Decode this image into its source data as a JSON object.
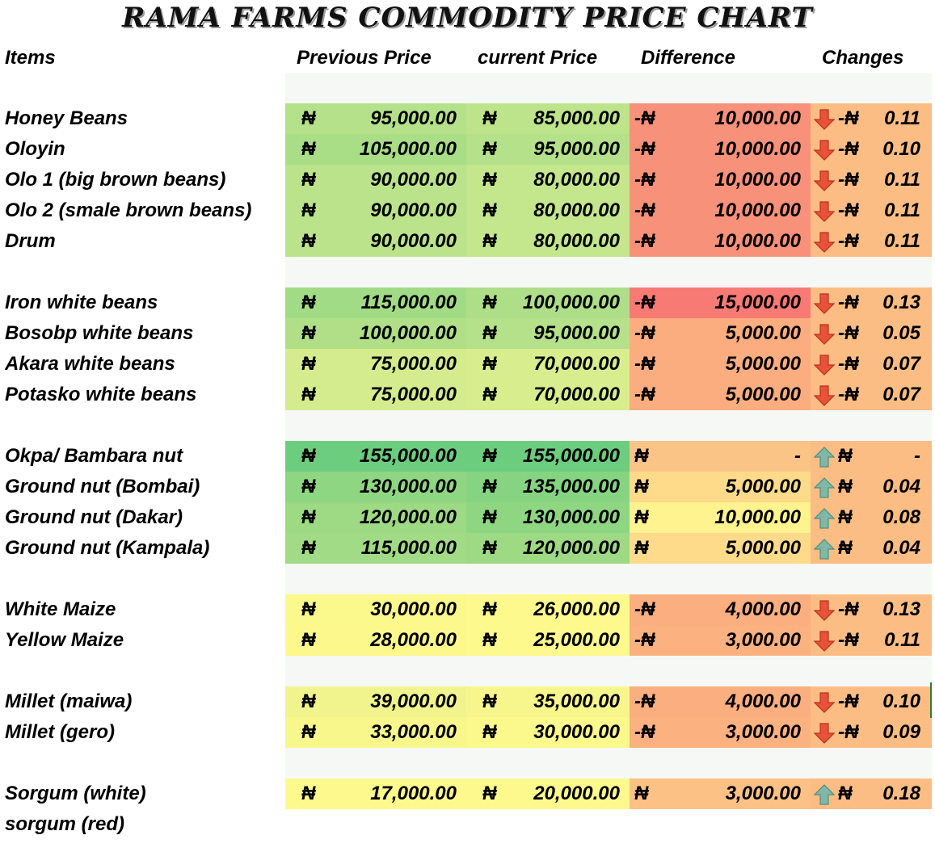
{
  "title": "RAMA FARMS COMMODITY PRICE CHART",
  "headers": {
    "items": "Items",
    "previous": "Previous Price",
    "current": "current Price",
    "difference": "Difference",
    "changes": "Changes"
  },
  "currency_symbol": "₦",
  "icons": {
    "down": "arrow-down-icon",
    "up": "arrow-up-icon"
  },
  "arrow_colors": {
    "down": "#e8513a",
    "up": "#7fb8a8"
  },
  "rows": [
    {
      "item": " Honey Beans",
      "prev": "95,000.00",
      "curr": "85,000.00",
      "diff_cur": "-₦",
      "diff": "10,000.00",
      "chg_cur": "-₦",
      "chg": "0.11",
      "dir": "down",
      "prev_bg": "#b4e189",
      "curr_bg": "#bde48b",
      "diff_bg": "#f8917a",
      "chg_bg": "#fcbd84"
    },
    {
      "item": "Oloyin",
      "prev": "105,000.00",
      "curr": "95,000.00",
      "diff_cur": "-₦",
      "diff": "10,000.00",
      "chg_cur": "-₦",
      "chg": "0.10",
      "dir": "down",
      "prev_bg": "#a9dd86",
      "curr_bg": "#b4e189",
      "diff_bg": "#f8917a",
      "chg_bg": "#fcbd84"
    },
    {
      "item": "Olo 1 (big brown beans)",
      "prev": "90,000.00",
      "curr": "80,000.00",
      "diff_cur": "-₦",
      "diff": "10,000.00",
      "chg_cur": "-₦",
      "chg": "0.11",
      "dir": "down",
      "prev_bg": "#bbe38b",
      "curr_bg": "#c4e68c",
      "diff_bg": "#f8917a",
      "chg_bg": "#fcbd84"
    },
    {
      "item": "Olo 2 (smale brown beans)",
      "prev": "90,000.00",
      "curr": "80,000.00",
      "diff_cur": "-₦",
      "diff": "10,000.00",
      "chg_cur": "-₦",
      "chg": "0.11",
      "dir": "down",
      "prev_bg": "#bbe38b",
      "curr_bg": "#c4e68c",
      "diff_bg": "#f8917a",
      "chg_bg": "#fcbd84"
    },
    {
      "item": "Drum",
      "prev": "90,000.00",
      "curr": "80,000.00",
      "diff_cur": "-₦",
      "diff": "10,000.00",
      "chg_cur": "-₦",
      "chg": "0.11",
      "dir": "down",
      "prev_bg": "#bbe38b",
      "curr_bg": "#c4e68c",
      "diff_bg": "#f8917a",
      "chg_bg": "#fcbd84"
    },
    {
      "item": "Iron white beans",
      "prev": "115,000.00",
      "curr": "100,000.00",
      "diff_cur": "-₦",
      "diff": "15,000.00",
      "chg_cur": "-₦",
      "chg": "0.13",
      "dir": "down",
      "prev_bg": "#a2db85",
      "curr_bg": "#aede88",
      "diff_bg": "#f87a74",
      "chg_bg": "#fcbd84"
    },
    {
      "item": "Bosobp white beans",
      "prev": "100,000.00",
      "curr": "95,000.00",
      "diff_cur": "-₦",
      "diff": "5,000.00",
      "chg_cur": "-₦",
      "chg": "0.05",
      "dir": "down",
      "prev_bg": "#b0df88",
      "curr_bg": "#b4e189",
      "diff_bg": "#fbad7f",
      "chg_bg": "#fcbd84"
    },
    {
      "item": "Akara  white beans",
      "prev": "75,000.00",
      "curr": "70,000.00",
      "diff_cur": "-₦",
      "diff": "5,000.00",
      "chg_cur": "-₦",
      "chg": "0.07",
      "dir": "down",
      "prev_bg": "#d4ec8d",
      "curr_bg": "#d8ed8e",
      "diff_bg": "#fbad7f",
      "chg_bg": "#fcbd84"
    },
    {
      "item": "Potasko white beans",
      "prev": "75,000.00",
      "curr": "70,000.00",
      "diff_cur": "-₦",
      "diff": "5,000.00",
      "chg_cur": "-₦",
      "chg": "0.07",
      "dir": "down",
      "prev_bg": "#d4ec8d",
      "curr_bg": "#d8ed8e",
      "diff_bg": "#fbad7f",
      "chg_bg": "#fcbd84"
    },
    {
      "item": "Okpa/ Bambara nut",
      "prev": "155,000.00",
      "curr": "155,000.00",
      "diff_cur": "₦",
      "diff": "-",
      "chg_cur": "₦",
      "chg": "-",
      "dir": "up",
      "prev_bg": "#6ccd7e",
      "curr_bg": "#6ccd7e",
      "diff_bg": "#fbc487",
      "chg_bg": "#fcbd84"
    },
    {
      "item": "Ground nut (Bombai)",
      "prev": "130,000.00",
      "curr": "135,000.00",
      "diff_cur": "₦",
      "diff": "5,000.00",
      "chg_cur": "₦",
      "chg": "0.04",
      "dir": "up",
      "prev_bg": "#8fd683",
      "curr_bg": "#86d481",
      "diff_bg": "#fddb8b",
      "chg_bg": "#fcbd84"
    },
    {
      "item": "Ground nut (Dakar)",
      "prev": "120,000.00",
      "curr": "130,000.00",
      "diff_cur": "₦",
      "diff": "10,000.00",
      "chg_cur": "₦",
      "chg": "0.08",
      "dir": "up",
      "prev_bg": "#9ed984",
      "curr_bg": "#8fd683",
      "diff_bg": "#fef38e",
      "chg_bg": "#fcbd84"
    },
    {
      "item": "Ground nut (Kampala)",
      "prev": "115,000.00",
      "curr": "120,000.00",
      "diff_cur": "₦",
      "diff": "5,000.00",
      "chg_cur": "₦",
      "chg": "0.04",
      "dir": "up",
      "prev_bg": "#a2db85",
      "curr_bg": "#9ed984",
      "diff_bg": "#fddb8b",
      "chg_bg": "#fcbd84"
    },
    {
      "item": "White Maize",
      "prev": "30,000.00",
      "curr": "26,000.00",
      "diff_cur": "-₦",
      "diff": "4,000.00",
      "chg_cur": "-₦",
      "chg": "0.13",
      "dir": "down",
      "prev_bg": "#fbf88c",
      "curr_bg": "#fdf98c",
      "diff_bg": "#fbae80",
      "chg_bg": "#fcbd84"
    },
    {
      "item": "Yellow Maize",
      "prev": "28,000.00",
      "curr": "25,000.00",
      "diff_cur": "-₦",
      "diff": "3,000.00",
      "chg_cur": "-₦",
      "chg": "0.11",
      "dir": "down",
      "prev_bg": "#fcf88c",
      "curr_bg": "#fdf98c",
      "diff_bg": "#fbb180",
      "chg_bg": "#fcbd84"
    },
    {
      "item": "Millet (maiwa)",
      "prev": "39,000.00",
      "curr": "35,000.00",
      "diff_cur": "-₦",
      "diff": "4,000.00",
      "chg_cur": "-₦",
      "chg": "0.10",
      "dir": "down",
      "prev_bg": "#f1f48c",
      "curr_bg": "#f6f68c",
      "diff_bg": "#fbae80",
      "chg_bg": "#fcbd84"
    },
    {
      "item": "Millet (gero)",
      "prev": "33,000.00",
      "curr": "30,000.00",
      "diff_cur": "-₦",
      "diff": "3,000.00",
      "chg_cur": "-₦",
      "chg": "0.09",
      "dir": "down",
      "prev_bg": "#f8f78c",
      "curr_bg": "#fbf88c",
      "diff_bg": "#fbb180",
      "chg_bg": "#fcbd84"
    },
    {
      "item": "Sorgum (white)",
      "prev": "17,000.00",
      "curr": "20,000.00",
      "diff_cur": "₦",
      "diff": "3,000.00",
      "chg_cur": "₦",
      "chg": "0.18",
      "dir": "up",
      "prev_bg": "#fef98c",
      "curr_bg": "#fef98c",
      "diff_bg": "#fcc185",
      "chg_bg": "#fcbd84"
    },
    {
      "item": "sorgum (red)",
      "empty": true
    }
  ]
}
